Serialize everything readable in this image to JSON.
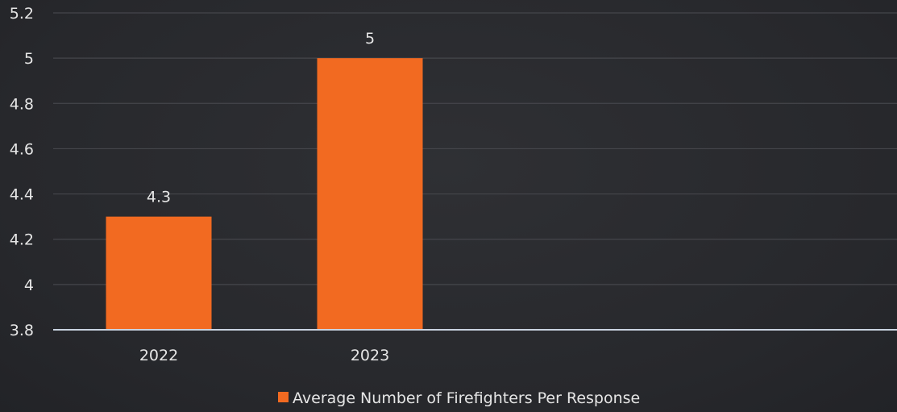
{
  "chart_data": {
    "type": "bar",
    "categories": [
      "2022",
      "2023"
    ],
    "series": [
      {
        "name": "Average Number of Firefighters Per Response",
        "values": [
          4.3,
          5
        ],
        "color": "#f26a21"
      }
    ],
    "data_labels": [
      "4.3",
      "5"
    ],
    "ylim": [
      3.8,
      5.2
    ],
    "y_ticks": [
      3.8,
      4,
      4.2,
      4.4,
      4.6,
      4.8,
      5,
      5.2
    ],
    "y_tick_labels": [
      "3.8",
      "4",
      "4.2",
      "4.4",
      "4.6",
      "4.8",
      "5",
      "5.2"
    ],
    "grid": true,
    "legend": "bottom",
    "title": "",
    "xlabel": "",
    "ylabel": "",
    "colors": {
      "background": "#2a2b2f",
      "grid": "#45464b",
      "axis": "#c9d3e0",
      "text": "#e6e6e6"
    }
  }
}
